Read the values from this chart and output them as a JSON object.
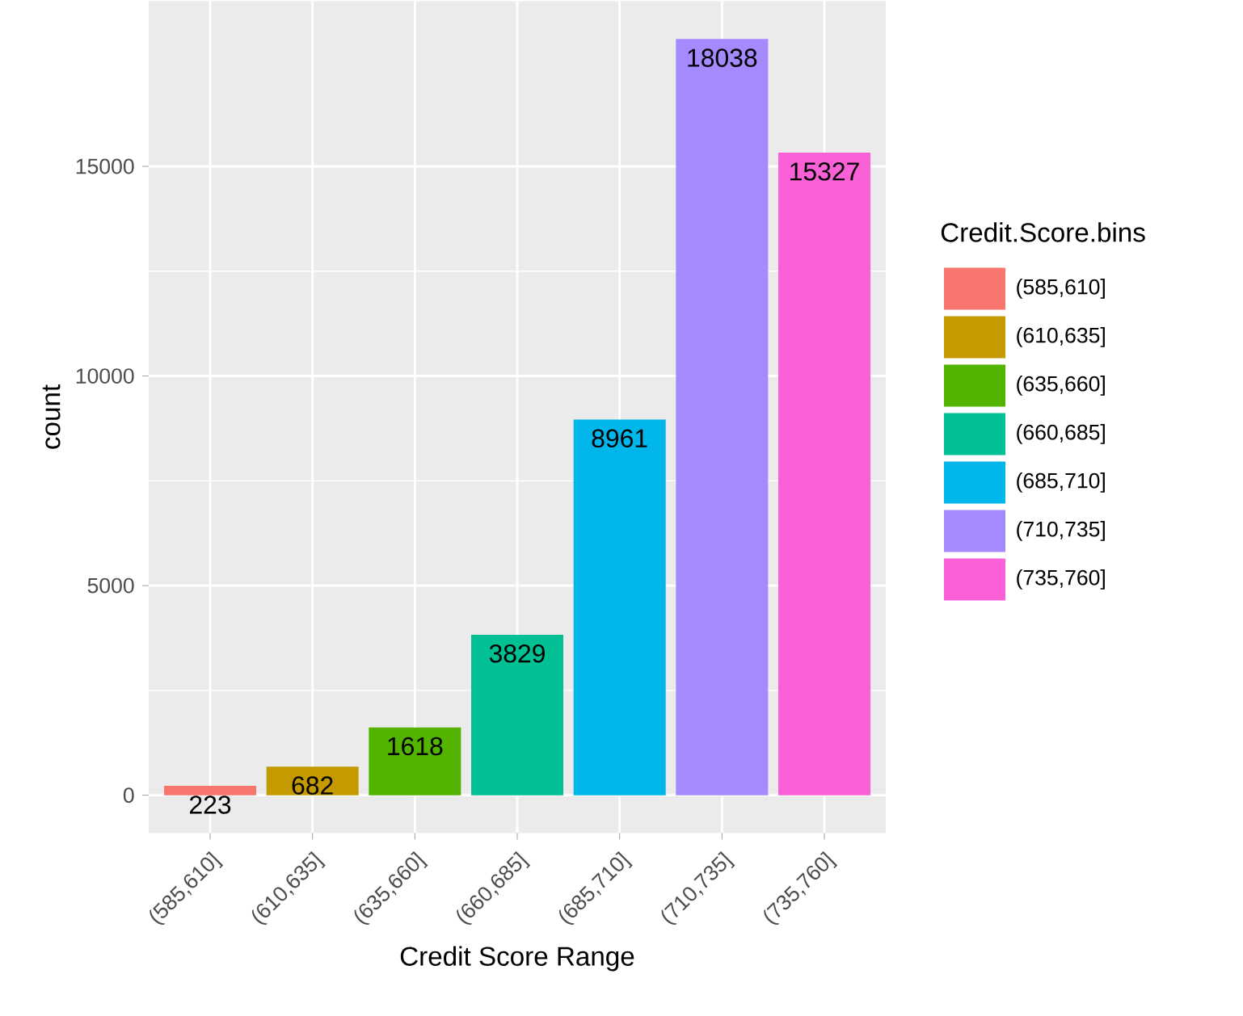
{
  "chart_data": {
    "type": "bar",
    "xlabel": "Credit Score Range",
    "ylabel": "count",
    "legend_title": "Credit.Score.bins",
    "categories": [
      "(585,610]",
      "(610,635]",
      "(635,660]",
      "(660,685]",
      "(685,710]",
      "(710,735]",
      "(735,760]"
    ],
    "series": [
      {
        "name": "(585,610]",
        "color": "#f8766d",
        "values": [
          223,
          null,
          null,
          null,
          null,
          null,
          null
        ]
      },
      {
        "name": "(610,635]",
        "color": "#c49a00",
        "values": [
          null,
          682,
          null,
          null,
          null,
          null,
          null
        ]
      },
      {
        "name": "(635,660]",
        "color": "#53b400",
        "values": [
          null,
          null,
          1618,
          null,
          null,
          null,
          null
        ]
      },
      {
        "name": "(660,685]",
        "color": "#00c094",
        "values": [
          null,
          null,
          null,
          3829,
          null,
          null,
          null
        ]
      },
      {
        "name": "(685,710]",
        "color": "#00b6eb",
        "values": [
          null,
          null,
          null,
          null,
          8961,
          null,
          null
        ]
      },
      {
        "name": "(710,735]",
        "color": "#a58aff",
        "values": [
          null,
          null,
          null,
          null,
          null,
          18038,
          null
        ]
      },
      {
        "name": "(735,760]",
        "color": "#fb61d7",
        "values": [
          null,
          null,
          null,
          null,
          null,
          null,
          15327
        ]
      }
    ],
    "ylim": [
      -902,
      18940
    ],
    "yticks": [
      0,
      5000,
      10000,
      15000
    ],
    "grid": true,
    "legend": "right",
    "data_labels": true
  }
}
